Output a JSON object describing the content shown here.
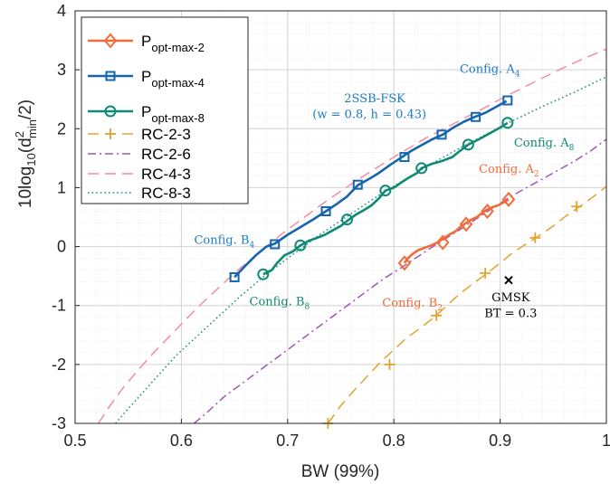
{
  "chart_data": {
    "type": "line",
    "xlabel": "BW (99%)",
    "ylabel": "10log10(d²min/2)",
    "xlim": [
      0.5,
      1.0
    ],
    "ylim": [
      -3,
      4
    ],
    "xticks": [
      0.5,
      0.6,
      0.7,
      0.8,
      0.9,
      1.0
    ],
    "xtick_labels": [
      "0.5",
      "0.6",
      "0.7",
      "0.8",
      "0.9",
      "1"
    ],
    "yticks": [
      -3,
      -2,
      -1,
      0,
      1,
      2,
      3,
      4
    ],
    "ytick_labels": [
      "-3",
      "-2",
      "-1",
      "0",
      "1",
      "2",
      "3",
      "4"
    ],
    "grid": true,
    "legend_position": "top-left",
    "series": [
      {
        "name": "P opt-max-2",
        "base": "P",
        "sub": "opt-max-2",
        "color": "#F26B38",
        "style": "solid",
        "marker": "diamond",
        "x": [
          0.81,
          0.813,
          0.818,
          0.823,
          0.829,
          0.835,
          0.841,
          0.846,
          0.852,
          0.858,
          0.863,
          0.868,
          0.872,
          0.878,
          0.883,
          0.888,
          0.893,
          0.898,
          0.903,
          0.908
        ],
        "y": [
          -0.28,
          -0.2,
          -0.12,
          -0.06,
          -0.02,
          0.02,
          0.07,
          0.13,
          0.2,
          0.26,
          0.34,
          0.4,
          0.45,
          0.5,
          0.57,
          0.63,
          0.67,
          0.7,
          0.75,
          0.8
        ],
        "marker_x": [
          0.81,
          0.846,
          0.868,
          0.888,
          0.908
        ],
        "marker_y": [
          -0.28,
          0.07,
          0.38,
          0.6,
          0.8
        ]
      },
      {
        "name": "P opt-max-4",
        "base": "P",
        "sub": "opt-max-4",
        "color": "#1565AE",
        "style": "solid",
        "marker": "square",
        "x": [
          0.65,
          0.66,
          0.67,
          0.68,
          0.688,
          0.7,
          0.712,
          0.724,
          0.736,
          0.746,
          0.756,
          0.766,
          0.776,
          0.786,
          0.796,
          0.806,
          0.816,
          0.826,
          0.836,
          0.846,
          0.856,
          0.866,
          0.876,
          0.886,
          0.896,
          0.906
        ],
        "y": [
          -0.52,
          -0.33,
          -0.15,
          0.0,
          0.05,
          0.2,
          0.33,
          0.46,
          0.6,
          0.72,
          0.85,
          1.04,
          1.14,
          1.25,
          1.38,
          1.5,
          1.62,
          1.72,
          1.82,
          1.9,
          2.02,
          2.12,
          2.2,
          2.27,
          2.37,
          2.47
        ],
        "marker_x": [
          0.65,
          0.688,
          0.736,
          0.766,
          0.81,
          0.845,
          0.877,
          0.907
        ],
        "marker_y": [
          -0.52,
          0.04,
          0.6,
          1.05,
          1.52,
          1.9,
          2.2,
          2.48
        ]
      },
      {
        "name": "P opt-max-8",
        "base": "P",
        "sub": "opt-max-8",
        "color": "#0F8A74",
        "style": "solid",
        "marker": "circle",
        "x": [
          0.677,
          0.685,
          0.69,
          0.697,
          0.705,
          0.712,
          0.72,
          0.728,
          0.735,
          0.743,
          0.75,
          0.757,
          0.765,
          0.772,
          0.779,
          0.786,
          0.792,
          0.8,
          0.808,
          0.815,
          0.822,
          0.826,
          0.835,
          0.845,
          0.855,
          0.862,
          0.87,
          0.88,
          0.89,
          0.9,
          0.907
        ],
        "y": [
          -0.47,
          -0.4,
          -0.28,
          -0.15,
          -0.08,
          0.02,
          0.1,
          0.15,
          0.2,
          0.28,
          0.35,
          0.45,
          0.55,
          0.62,
          0.7,
          0.82,
          0.95,
          1.0,
          1.1,
          1.18,
          1.25,
          1.33,
          1.4,
          1.45,
          1.52,
          1.62,
          1.73,
          1.82,
          1.92,
          2.02,
          2.1
        ],
        "marker_x": [
          0.677,
          0.712,
          0.756,
          0.792,
          0.826,
          0.87,
          0.907
        ],
        "marker_y": [
          -0.47,
          0.02,
          0.46,
          0.95,
          1.33,
          1.73,
          2.1
        ]
      },
      {
        "name": "RC-2-3",
        "color": "#E0A42E",
        "style": "dashed",
        "marker": "plus",
        "x": [
          0.738,
          0.75,
          0.762,
          0.775,
          0.788,
          0.8,
          0.812,
          0.825,
          0.838,
          0.85,
          0.862,
          0.875,
          0.888,
          0.9,
          0.912,
          0.925,
          0.938,
          0.95,
          0.962,
          0.975,
          0.988,
          1.0
        ],
        "y": [
          -3.0,
          -2.7,
          -2.45,
          -2.2,
          -1.95,
          -1.75,
          -1.55,
          -1.38,
          -1.2,
          -1.0,
          -0.8,
          -0.62,
          -0.45,
          -0.28,
          -0.1,
          0.05,
          0.2,
          0.35,
          0.52,
          0.68,
          0.85,
          1.02
        ],
        "marker_x": [
          0.738,
          0.796,
          0.84,
          0.886,
          0.933,
          0.972
        ],
        "marker_y": [
          -3.0,
          -2.0,
          -1.17,
          -0.45,
          0.15,
          0.68
        ]
      },
      {
        "name": "RC-2-6",
        "color": "#A155B9",
        "style": "dashdot",
        "marker": "none",
        "x": [
          0.612,
          0.625,
          0.64,
          0.655,
          0.67,
          0.685,
          0.7,
          0.715,
          0.73,
          0.745,
          0.76,
          0.775,
          0.79,
          0.805,
          0.82,
          0.835,
          0.85,
          0.865,
          0.88,
          0.895,
          0.91,
          0.925,
          0.94,
          0.955,
          0.97,
          0.985,
          1.0
        ],
        "y": [
          -3.0,
          -2.8,
          -2.55,
          -2.35,
          -2.15,
          -1.95,
          -1.75,
          -1.55,
          -1.35,
          -1.15,
          -0.95,
          -0.75,
          -0.55,
          -0.38,
          -0.2,
          -0.02,
          0.15,
          0.32,
          0.5,
          0.68,
          0.85,
          1.0,
          1.15,
          1.3,
          1.45,
          1.62,
          1.82
        ],
        "marker_x": [],
        "marker_y": []
      },
      {
        "name": "RC-4-3",
        "color": "#F28CA8",
        "style": "dashed",
        "marker": "none",
        "x": [
          0.522,
          0.532,
          0.545,
          0.56,
          0.575,
          0.59,
          0.605,
          0.62,
          0.635,
          0.65,
          0.665,
          0.68,
          0.695,
          0.71,
          0.725,
          0.74,
          0.755,
          0.77,
          0.785,
          0.8,
          0.815,
          0.83,
          0.845,
          0.86,
          0.875,
          0.89,
          0.905,
          0.92,
          0.935,
          0.95,
          0.965,
          0.98,
          1.0
        ],
        "y": [
          -3.0,
          -2.72,
          -2.4,
          -2.08,
          -1.78,
          -1.5,
          -1.22,
          -0.95,
          -0.7,
          -0.45,
          -0.22,
          0.0,
          0.22,
          0.42,
          0.62,
          0.82,
          1.0,
          1.18,
          1.35,
          1.52,
          1.68,
          1.84,
          1.98,
          2.12,
          2.26,
          2.4,
          2.55,
          2.68,
          2.82,
          2.95,
          3.08,
          3.2,
          3.35
        ],
        "marker_x": [],
        "marker_y": []
      },
      {
        "name": "RC-8-3",
        "color": "#1E8C86",
        "style": "dotted",
        "marker": "none",
        "x": [
          0.538,
          0.55,
          0.565,
          0.58,
          0.595,
          0.61,
          0.625,
          0.64,
          0.655,
          0.67,
          0.685,
          0.7,
          0.715,
          0.73,
          0.745,
          0.76,
          0.775,
          0.79,
          0.805,
          0.82,
          0.835,
          0.85,
          0.865,
          0.88,
          0.895,
          0.91,
          0.925,
          0.94,
          0.955,
          0.97,
          0.985,
          1.0
        ],
        "y": [
          -3.0,
          -2.75,
          -2.45,
          -2.15,
          -1.85,
          -1.6,
          -1.35,
          -1.1,
          -0.85,
          -0.62,
          -0.4,
          -0.2,
          0.0,
          0.2,
          0.38,
          0.56,
          0.74,
          0.92,
          1.08,
          1.24,
          1.4,
          1.55,
          1.7,
          1.84,
          1.98,
          2.12,
          2.25,
          2.38,
          2.5,
          2.62,
          2.75,
          2.88
        ],
        "marker_x": [],
        "marker_y": []
      }
    ],
    "gmsk_point": {
      "x": 0.908,
      "y": -0.57
    },
    "annotations": [
      {
        "base": "Config. A",
        "sub": "4",
        "color": "#1A7CC4",
        "ax": 0.862,
        "ay": 2.95,
        "anchor": "start"
      },
      {
        "base": "Config. A",
        "sub": "8",
        "color": "#0F8A74",
        "ax": 0.913,
        "ay": 1.7,
        "anchor": "start"
      },
      {
        "base": "Config. A",
        "sub": "2",
        "color": "#F26B38",
        "ax": 0.88,
        "ay": 1.25,
        "anchor": "start"
      },
      {
        "base": "Config. B",
        "sub": "4",
        "color": "#1A7CC4",
        "ax": 0.612,
        "ay": 0.05,
        "anchor": "start"
      },
      {
        "base": "Config. B",
        "sub": "8",
        "color": "#0F8A74",
        "ax": 0.664,
        "ay": -1.0,
        "anchor": "start"
      },
      {
        "base": "Config. B",
        "sub": "2",
        "color": "#F26B38",
        "ax": 0.789,
        "ay": -1.02,
        "anchor": "start"
      },
      {
        "base": "2SSB-FSK",
        "sub": "",
        "color": "#1A7CC4",
        "ax": 0.782,
        "ay": 2.45,
        "anchor": "middle"
      },
      {
        "base": "(w = 0.8, h = 0.43)",
        "sub": "",
        "color": "#1A7CC4",
        "ax": 0.777,
        "ay": 2.18,
        "anchor": "middle"
      },
      {
        "base": "GMSK",
        "sub": "",
        "color": "#000000",
        "ax": 0.91,
        "ay": -0.93,
        "anchor": "middle"
      },
      {
        "base": "BT = 0.3",
        "sub": "",
        "color": "#000000",
        "ax": 0.91,
        "ay": -1.2,
        "anchor": "middle"
      }
    ]
  }
}
